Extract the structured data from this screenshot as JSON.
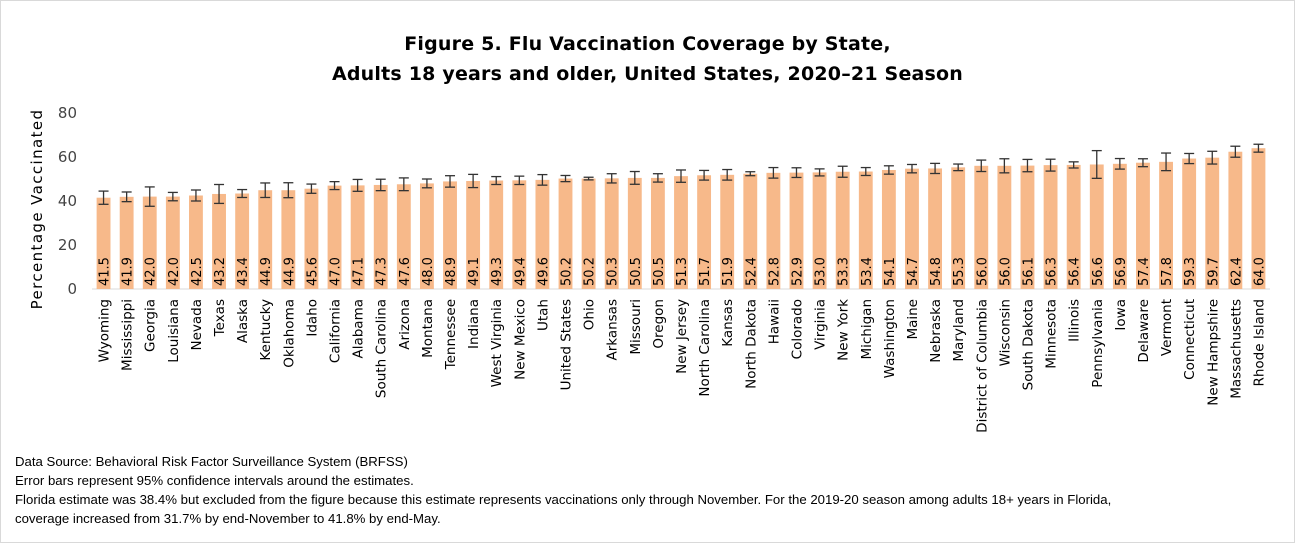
{
  "chart_data": {
    "type": "bar",
    "title": "Figure 5. Flu Vaccination Coverage by State,",
    "subtitle": "Adults 18 years and older, United States, 2020–21 Season",
    "ylabel": "Percentage Vaccinated",
    "ylim": [
      0,
      80
    ],
    "yticks": [
      "0",
      "20",
      "40",
      "60",
      "80"
    ],
    "grid": false,
    "bar_color": "#f7b98a",
    "categories": [
      "Wyoming",
      "Mississippi",
      "Georgia",
      "Louisiana",
      "Nevada",
      "Texas",
      "Alaska",
      "Kentucky",
      "Oklahoma",
      "Idaho",
      "California",
      "Alabama",
      "South Carolina",
      "Arizona",
      "Montana",
      "Tennessee",
      "Indiana",
      "West Virginia",
      "New Mexico",
      "Utah",
      "United States",
      "Ohio",
      "Arkansas",
      "Missouri",
      "Oregon",
      "New Jersey",
      "North Carolina",
      "Kansas",
      "North Dakota",
      "Hawaii",
      "Colorado",
      "Virginia",
      "New York",
      "Michigan",
      "Washington",
      "Maine",
      "Nebraska",
      "Maryland",
      "District of Columbia",
      "Wisconsin",
      "South Dakota",
      "Minnesota",
      "Illinois",
      "Pennsylvania",
      "Iowa",
      "Delaware",
      "Vermont",
      "Connecticut",
      "New Hampshire",
      "Massachusetts",
      "Rhode Island"
    ],
    "value_labels": [
      "41.5",
      "41.9",
      "42.0",
      "42.0",
      "42.5",
      "43.2",
      "43.4",
      "44.9",
      "44.9",
      "45.6",
      "47.0",
      "47.1",
      "47.3",
      "47.6",
      "48.0",
      "48.9",
      "49.1",
      "49.3",
      "49.4",
      "49.6",
      "50.2",
      "50.2",
      "50.3",
      "50.5",
      "50.5",
      "51.3",
      "51.7",
      "51.9",
      "52.4",
      "52.8",
      "52.9",
      "53.0",
      "53.3",
      "53.4",
      "54.1",
      "54.7",
      "54.8",
      "55.3",
      "56.0",
      "56.0",
      "56.1",
      "56.3",
      "56.4",
      "56.6",
      "56.9",
      "57.4",
      "57.8",
      "59.3",
      "59.7",
      "62.4",
      "64.0"
    ],
    "values": [
      41.5,
      41.9,
      42.0,
      42.0,
      42.5,
      43.2,
      43.4,
      44.9,
      44.9,
      45.6,
      47.0,
      47.1,
      47.3,
      47.6,
      48.0,
      48.9,
      49.1,
      49.3,
      49.4,
      49.6,
      50.2,
      50.2,
      50.3,
      50.5,
      50.5,
      51.3,
      51.7,
      51.9,
      52.4,
      52.8,
      52.9,
      53.0,
      53.3,
      53.4,
      54.1,
      54.7,
      54.8,
      55.3,
      56.0,
      56.0,
      56.1,
      56.3,
      56.4,
      56.6,
      56.9,
      57.4,
      57.8,
      59.3,
      59.7,
      62.4,
      64.0
    ],
    "error_low": [
      38.5,
      39.7,
      37.6,
      40.1,
      40.0,
      38.9,
      41.6,
      41.6,
      41.5,
      43.5,
      45.2,
      44.4,
      44.7,
      44.7,
      46.0,
      46.3,
      46.1,
      47.5,
      47.5,
      47.2,
      48.8,
      49.6,
      48.2,
      47.6,
      48.6,
      48.5,
      49.5,
      49.5,
      51.5,
      50.4,
      50.7,
      51.4,
      50.8,
      51.6,
      52.2,
      52.8,
      52.5,
      53.8,
      53.4,
      52.8,
      53.3,
      53.6,
      55.0,
      50.3,
      54.5,
      55.6,
      53.8,
      57.0,
      56.8,
      59.9,
      62.2
    ],
    "error_high": [
      44.5,
      44.1,
      46.4,
      43.9,
      45.0,
      47.5,
      45.2,
      48.2,
      48.3,
      47.7,
      48.8,
      49.8,
      49.9,
      50.5,
      50.0,
      51.5,
      52.1,
      51.1,
      51.3,
      52.0,
      51.6,
      50.8,
      52.4,
      53.4,
      52.4,
      54.1,
      53.9,
      54.3,
      53.3,
      55.2,
      55.1,
      54.6,
      55.8,
      55.2,
      56.0,
      56.6,
      57.1,
      56.8,
      58.6,
      59.2,
      58.9,
      59.0,
      57.8,
      62.9,
      59.3,
      59.2,
      61.8,
      61.6,
      62.6,
      64.9,
      65.8
    ]
  },
  "notes": {
    "line1": "Data Source: Behavioral Risk Factor Surveillance System (BRFSS)",
    "line2": "Error bars represent 95% confidence intervals around the estimates.",
    "line3": "Florida estimate was 38.4% but excluded from the figure because this estimate represents vaccinations only through November. For the 2019-20 season among adults 18+ years in Florida,",
    "line4": "coverage increased from 31.7% by end-November to 41.8% by end-May."
  }
}
